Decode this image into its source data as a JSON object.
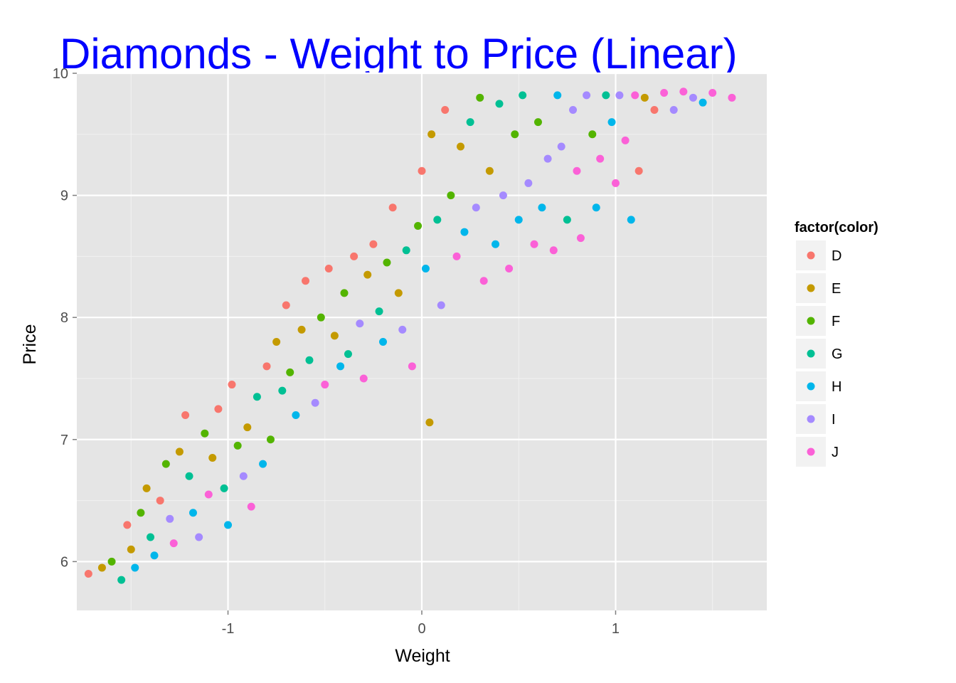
{
  "chart_data": {
    "type": "scatter",
    "title": "Diamonds - Weight to Price (Linear)",
    "title_color": "#0000FF",
    "xlabel": "Weight",
    "ylabel": "Price",
    "xlim": [
      -1.78,
      1.78
    ],
    "ylim": [
      5.6,
      10.0
    ],
    "x_ticks": [
      {
        "value": -1,
        "label": "-1"
      },
      {
        "value": 0,
        "label": "0"
      },
      {
        "value": 1,
        "label": "1"
      }
    ],
    "y_ticks": [
      {
        "value": 6,
        "label": "6"
      },
      {
        "value": 7,
        "label": "7"
      },
      {
        "value": 8,
        "label": "8"
      },
      {
        "value": 9,
        "label": "9"
      },
      {
        "value": 10,
        "label": "10"
      }
    ],
    "grid": true,
    "background": "#E5E5E5",
    "legend": {
      "title": "factor(color)",
      "placement": "right"
    },
    "series": [
      {
        "name": "D",
        "color": "#F8766D"
      },
      {
        "name": "E",
        "color": "#C49A00"
      },
      {
        "name": "F",
        "color": "#53B400"
      },
      {
        "name": "G",
        "color": "#00C094"
      },
      {
        "name": "H",
        "color": "#00B6EB"
      },
      {
        "name": "I",
        "color": "#A58AFF"
      },
      {
        "name": "J",
        "color": "#FB61D7"
      }
    ],
    "points": [
      [
        -1.72,
        5.9,
        "D"
      ],
      [
        -1.65,
        5.95,
        "E"
      ],
      [
        -1.6,
        6.0,
        "F"
      ],
      [
        -1.55,
        5.85,
        "G"
      ],
      [
        -1.52,
        6.3,
        "D"
      ],
      [
        -1.5,
        6.1,
        "E"
      ],
      [
        -1.48,
        5.95,
        "H"
      ],
      [
        -1.45,
        6.4,
        "F"
      ],
      [
        -1.42,
        6.6,
        "E"
      ],
      [
        -1.4,
        6.2,
        "G"
      ],
      [
        -1.38,
        6.05,
        "H"
      ],
      [
        -1.35,
        6.5,
        "D"
      ],
      [
        -1.32,
        6.8,
        "F"
      ],
      [
        -1.3,
        6.35,
        "I"
      ],
      [
        -1.28,
        6.15,
        "J"
      ],
      [
        -1.25,
        6.9,
        "E"
      ],
      [
        -1.22,
        7.2,
        "D"
      ],
      [
        -1.2,
        6.7,
        "G"
      ],
      [
        -1.18,
        6.4,
        "H"
      ],
      [
        -1.15,
        6.2,
        "I"
      ],
      [
        -1.12,
        7.05,
        "F"
      ],
      [
        -1.1,
        6.55,
        "J"
      ],
      [
        -1.08,
        6.85,
        "E"
      ],
      [
        -1.05,
        7.25,
        "D"
      ],
      [
        -1.02,
        6.6,
        "G"
      ],
      [
        -1.0,
        6.3,
        "H"
      ],
      [
        -0.98,
        7.45,
        "D"
      ],
      [
        -0.95,
        6.95,
        "F"
      ],
      [
        -0.92,
        6.7,
        "I"
      ],
      [
        -0.9,
        7.1,
        "E"
      ],
      [
        -0.88,
        6.45,
        "J"
      ],
      [
        -0.85,
        7.35,
        "G"
      ],
      [
        -0.82,
        6.8,
        "H"
      ],
      [
        -0.8,
        7.6,
        "D"
      ],
      [
        -0.78,
        7.0,
        "F"
      ],
      [
        -0.75,
        7.8,
        "E"
      ],
      [
        -0.72,
        7.4,
        "G"
      ],
      [
        -0.7,
        8.1,
        "D"
      ],
      [
        -0.68,
        7.55,
        "F"
      ],
      [
        -0.65,
        7.2,
        "H"
      ],
      [
        -0.62,
        7.9,
        "E"
      ],
      [
        -0.6,
        8.3,
        "D"
      ],
      [
        -0.58,
        7.65,
        "G"
      ],
      [
        -0.55,
        7.3,
        "I"
      ],
      [
        -0.52,
        8.0,
        "F"
      ],
      [
        -0.5,
        7.45,
        "J"
      ],
      [
        -0.48,
        8.4,
        "D"
      ],
      [
        -0.45,
        7.85,
        "E"
      ],
      [
        -0.42,
        7.6,
        "H"
      ],
      [
        -0.4,
        8.2,
        "F"
      ],
      [
        -0.38,
        7.7,
        "G"
      ],
      [
        -0.35,
        8.5,
        "D"
      ],
      [
        -0.32,
        7.95,
        "I"
      ],
      [
        -0.3,
        7.5,
        "J"
      ],
      [
        -0.28,
        8.35,
        "E"
      ],
      [
        -0.25,
        8.6,
        "D"
      ],
      [
        -0.22,
        8.05,
        "G"
      ],
      [
        -0.2,
        7.8,
        "H"
      ],
      [
        -0.18,
        8.45,
        "F"
      ],
      [
        -0.15,
        8.9,
        "D"
      ],
      [
        -0.12,
        8.2,
        "E"
      ],
      [
        -0.1,
        7.9,
        "I"
      ],
      [
        -0.08,
        8.55,
        "G"
      ],
      [
        -0.05,
        7.6,
        "J"
      ],
      [
        -0.02,
        8.75,
        "F"
      ],
      [
        0.0,
        9.2,
        "D"
      ],
      [
        0.02,
        8.4,
        "H"
      ],
      [
        0.04,
        7.14,
        "E"
      ],
      [
        0.05,
        9.5,
        "E"
      ],
      [
        0.08,
        8.8,
        "G"
      ],
      [
        0.1,
        8.1,
        "I"
      ],
      [
        0.12,
        9.7,
        "D"
      ],
      [
        0.15,
        9.0,
        "F"
      ],
      [
        0.18,
        8.5,
        "J"
      ],
      [
        0.2,
        9.4,
        "E"
      ],
      [
        0.22,
        8.7,
        "H"
      ],
      [
        0.25,
        9.6,
        "G"
      ],
      [
        0.28,
        8.9,
        "I"
      ],
      [
        0.3,
        9.8,
        "F"
      ],
      [
        0.32,
        8.3,
        "J"
      ],
      [
        0.35,
        9.2,
        "E"
      ],
      [
        0.38,
        8.6,
        "H"
      ],
      [
        0.4,
        9.75,
        "G"
      ],
      [
        0.42,
        9.0,
        "I"
      ],
      [
        0.45,
        8.4,
        "J"
      ],
      [
        0.48,
        9.5,
        "F"
      ],
      [
        0.5,
        8.8,
        "H"
      ],
      [
        0.52,
        9.82,
        "G"
      ],
      [
        0.55,
        9.1,
        "I"
      ],
      [
        0.58,
        8.6,
        "J"
      ],
      [
        0.6,
        9.6,
        "F"
      ],
      [
        0.62,
        8.9,
        "H"
      ],
      [
        0.65,
        9.3,
        "I"
      ],
      [
        0.68,
        8.55,
        "J"
      ],
      [
        0.7,
        9.82,
        "H"
      ],
      [
        0.72,
        9.4,
        "I"
      ],
      [
        0.75,
        8.8,
        "G"
      ],
      [
        0.78,
        9.7,
        "I"
      ],
      [
        0.8,
        9.2,
        "J"
      ],
      [
        0.82,
        8.65,
        "J"
      ],
      [
        0.85,
        9.82,
        "I"
      ],
      [
        0.88,
        9.5,
        "F"
      ],
      [
        0.9,
        8.9,
        "H"
      ],
      [
        0.92,
        9.3,
        "J"
      ],
      [
        0.95,
        9.82,
        "G"
      ],
      [
        0.98,
        9.6,
        "H"
      ],
      [
        1.0,
        9.1,
        "J"
      ],
      [
        1.02,
        9.82,
        "I"
      ],
      [
        1.05,
        9.45,
        "J"
      ],
      [
        1.08,
        8.8,
        "H"
      ],
      [
        1.1,
        9.82,
        "J"
      ],
      [
        1.12,
        9.2,
        "D"
      ],
      [
        1.15,
        9.8,
        "E"
      ],
      [
        1.2,
        9.7,
        "D"
      ],
      [
        1.25,
        9.84,
        "J"
      ],
      [
        1.3,
        9.7,
        "I"
      ],
      [
        1.35,
        9.85,
        "J"
      ],
      [
        1.4,
        9.8,
        "I"
      ],
      [
        1.45,
        9.76,
        "H"
      ],
      [
        1.5,
        9.84,
        "J"
      ],
      [
        1.6,
        9.8,
        "J"
      ]
    ]
  }
}
